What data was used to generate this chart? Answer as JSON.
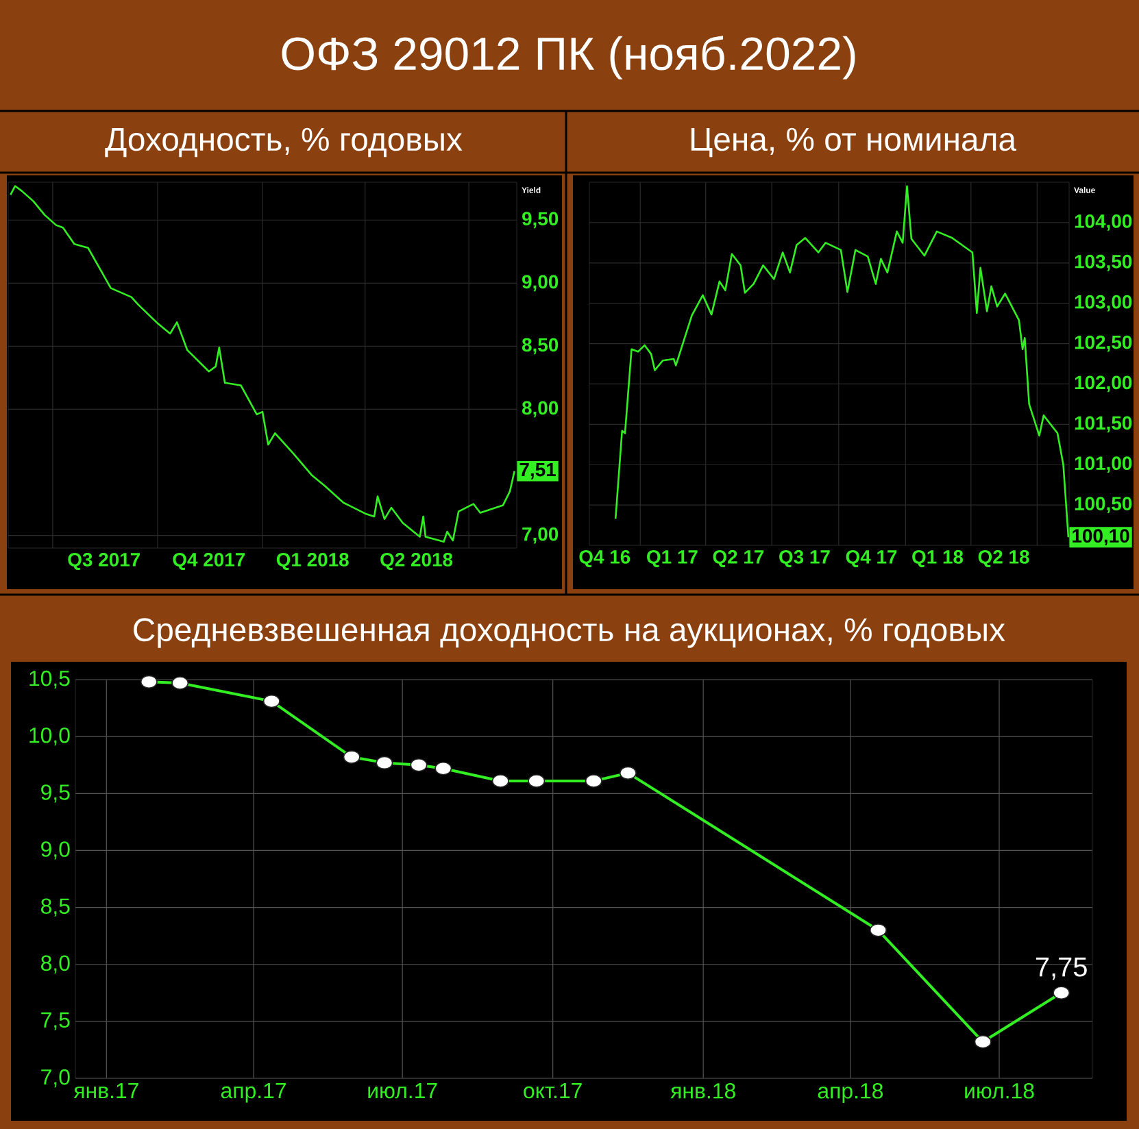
{
  "chart_data": [
    {
      "type": "line",
      "title": "ОФЗ 29012 ПК (нояб.2022)",
      "subtitle": "Доходность, % годовых",
      "ylabel": "Yield",
      "color": "#33ee22",
      "grid": true,
      "x": [
        "2017-05-25",
        "2017-05-29",
        "2017-06-04",
        "2017-06-14",
        "2017-06-24",
        "2017-07-04",
        "2017-07-10",
        "2017-07-20",
        "2017-08-01",
        "2017-08-11",
        "2017-08-21",
        "2017-09-08",
        "2017-09-14",
        "2017-09-30",
        "2017-10-12",
        "2017-10-18",
        "2017-10-27",
        "2017-11-15",
        "2017-11-21",
        "2017-11-24",
        "2017-11-29",
        "2017-12-13",
        "2017-12-27",
        "2018-01-01",
        "2018-01-06",
        "2018-01-12",
        "2018-01-28",
        "2018-02-13",
        "2018-02-25",
        "2018-03-13",
        "2018-04-02",
        "2018-04-09",
        "2018-04-12",
        "2018-04-18",
        "2018-04-24",
        "2018-05-04",
        "2018-05-19",
        "2018-05-22",
        "2018-05-24",
        "2018-06-09",
        "2018-06-12",
        "2018-06-17",
        "2018-06-22",
        "2018-07-05",
        "2018-07-11",
        "2018-07-31",
        "2018-08-06",
        "2018-08-10"
      ],
      "values": [
        9.7,
        9.77,
        9.73,
        9.65,
        9.54,
        9.46,
        9.44,
        9.31,
        9.28,
        9.12,
        8.96,
        8.89,
        8.83,
        8.69,
        8.6,
        8.69,
        8.47,
        8.3,
        8.34,
        8.49,
        8.21,
        8.19,
        7.96,
        7.98,
        7.72,
        7.81,
        7.65,
        7.48,
        7.39,
        7.26,
        7.17,
        7.15,
        7.31,
        7.13,
        7.22,
        7.1,
        6.99,
        7.15,
        6.99,
        6.95,
        7.03,
        6.96,
        7.19,
        7.25,
        7.18,
        7.24,
        7.35,
        7.51
      ],
      "xlim": [
        "2017-05-23",
        "2018-08-12"
      ],
      "ylim": [
        6.9,
        9.8
      ],
      "xticks": [
        {
          "value": "2017-07-01",
          "label": null
        },
        {
          "value": "2017-08-15",
          "label": "Q3 2017"
        },
        {
          "value": "2017-10-01",
          "label": null
        },
        {
          "value": "2017-11-15",
          "label": "Q4 2017"
        },
        {
          "value": "2018-01-01",
          "label": null
        },
        {
          "value": "2018-02-14",
          "label": "Q1 2018"
        },
        {
          "value": "2018-04-01",
          "label": null
        },
        {
          "value": "2018-05-16",
          "label": "Q2 2018"
        },
        {
          "value": "2018-07-01",
          "label": null
        }
      ],
      "yticks": [
        {
          "value": 7.0,
          "label": "7,00"
        },
        {
          "value": 8.0,
          "label": "8,00"
        },
        {
          "value": 8.5,
          "label": "8,50"
        },
        {
          "value": 9.0,
          "label": "9,00"
        },
        {
          "value": 9.5,
          "label": "9,50"
        }
      ],
      "annotations": [
        {
          "text": "7,51",
          "x": "2018-08-10",
          "y": 7.51
        }
      ]
    },
    {
      "type": "line",
      "title": "Цена, % от номинала",
      "ylabel": "Value",
      "color": "#33ee22",
      "grid": true,
      "x": [
        "2016-11-28",
        "2016-12-07",
        "2016-12-11",
        "2016-12-20",
        "2016-12-29",
        "2017-01-07",
        "2017-01-16",
        "2017-01-21",
        "2017-02-01",
        "2017-02-16",
        "2017-02-19",
        "2017-03-13",
        "2017-03-28",
        "2017-04-09",
        "2017-04-20",
        "2017-04-28",
        "2017-05-07",
        "2017-05-19",
        "2017-05-25",
        "2017-06-06",
        "2017-06-19",
        "2017-07-04",
        "2017-07-16",
        "2017-07-26",
        "2017-08-04",
        "2017-08-16",
        "2017-09-03",
        "2017-09-13",
        "2017-10-04",
        "2017-10-13",
        "2017-10-24",
        "2017-11-10",
        "2017-11-21",
        "2017-11-28",
        "2017-12-07",
        "2017-12-20",
        "2017-12-28",
        "2018-01-03",
        "2018-01-09",
        "2018-01-27",
        "2018-02-13",
        "2018-03-06",
        "2018-04-03",
        "2018-04-09",
        "2018-04-14",
        "2018-04-23",
        "2018-04-29",
        "2018-05-07",
        "2018-05-18",
        "2018-06-06",
        "2018-06-11",
        "2018-06-14",
        "2018-06-20",
        "2018-07-04",
        "2018-07-10",
        "2018-07-29",
        "2018-08-06",
        "2018-08-13"
      ],
      "values": [
        100.33,
        101.42,
        101.39,
        102.43,
        102.4,
        102.48,
        102.37,
        102.17,
        102.29,
        102.31,
        102.23,
        102.85,
        103.1,
        102.86,
        103.27,
        103.16,
        103.61,
        103.47,
        103.13,
        103.24,
        103.47,
        103.3,
        103.63,
        103.38,
        103.72,
        103.81,
        103.63,
        103.75,
        103.66,
        103.14,
        103.66,
        103.58,
        103.24,
        103.55,
        103.38,
        103.89,
        103.75,
        104.45,
        103.8,
        103.59,
        103.89,
        103.81,
        103.63,
        102.88,
        103.44,
        102.9,
        103.21,
        102.96,
        103.12,
        102.79,
        102.43,
        102.57,
        101.75,
        101.36,
        101.61,
        101.39,
        101.0,
        100.1
      ],
      "xlim": [
        "2016-10-23",
        "2018-08-14"
      ],
      "ylim": [
        100.0,
        104.5
      ],
      "xticks": [
        {
          "value": "2016-11-13",
          "label": "Q4 16"
        },
        {
          "value": "2017-01-01",
          "label": null
        },
        {
          "value": "2017-02-14",
          "label": "Q1 17"
        },
        {
          "value": "2017-04-01",
          "label": null
        },
        {
          "value": "2017-05-16",
          "label": "Q2 17"
        },
        {
          "value": "2017-07-01",
          "label": null
        },
        {
          "value": "2017-08-15",
          "label": "Q3 17"
        },
        {
          "value": "2017-10-01",
          "label": null
        },
        {
          "value": "2017-11-15",
          "label": "Q4 17"
        },
        {
          "value": "2018-01-01",
          "label": null
        },
        {
          "value": "2018-02-14",
          "label": "Q1 18"
        },
        {
          "value": "2018-04-01",
          "label": null
        },
        {
          "value": "2018-05-16",
          "label": "Q2 18"
        },
        {
          "value": "2018-07-01",
          "label": null
        }
      ],
      "yticks": [
        {
          "value": 100.5,
          "label": "100,50"
        },
        {
          "value": 101.0,
          "label": "101,00"
        },
        {
          "value": 101.5,
          "label": "101,50"
        },
        {
          "value": 102.0,
          "label": "102,00"
        },
        {
          "value": 102.5,
          "label": "102,50"
        },
        {
          "value": 103.0,
          "label": "103,00"
        },
        {
          "value": 103.5,
          "label": "103,50"
        },
        {
          "value": 104.0,
          "label": "104,00"
        }
      ],
      "annotations": [
        {
          "text": "100,10",
          "x": "2018-08-13",
          "y": 100.1
        }
      ]
    },
    {
      "type": "line",
      "title": "Средневзвешенная доходность на аукционах, % годовых",
      "color": "#33ee22",
      "grid": true,
      "marker": "circle",
      "x": [
        "2017-01-27",
        "2017-02-15",
        "2017-04-12",
        "2017-05-31",
        "2017-06-20",
        "2017-07-11",
        "2017-07-26",
        "2017-08-30",
        "2017-09-21",
        "2017-10-26",
        "2017-11-16",
        "2018-04-18",
        "2018-06-21",
        "2018-08-08"
      ],
      "values": [
        10.48,
        10.47,
        10.31,
        9.82,
        9.77,
        9.75,
        9.72,
        9.61,
        9.61,
        9.61,
        9.68,
        8.3,
        7.32,
        7.75
      ],
      "value_labels": [
        null,
        null,
        null,
        null,
        null,
        null,
        null,
        null,
        null,
        null,
        null,
        null,
        null,
        "7,75"
      ],
      "xlim": [
        "2016-12-13",
        "2018-08-27"
      ],
      "ylim": [
        7.0,
        10.5
      ],
      "xticks": [
        {
          "value": "2017-01-01",
          "label": "янв.17"
        },
        {
          "value": "2017-04-01",
          "label": "апр.17"
        },
        {
          "value": "2017-07-01",
          "label": "июл.17"
        },
        {
          "value": "2017-10-01",
          "label": "окт.17"
        },
        {
          "value": "2018-01-01",
          "label": "янв.18"
        },
        {
          "value": "2018-04-01",
          "label": "апр.18"
        },
        {
          "value": "2018-07-01",
          "label": "июл.18"
        }
      ],
      "yticks": [
        {
          "value": 7.0,
          "label": "7,0"
        },
        {
          "value": 7.5,
          "label": "7,5"
        },
        {
          "value": 8.0,
          "label": "8,0"
        },
        {
          "value": 8.5,
          "label": "8,5"
        },
        {
          "value": 9.0,
          "label": "9,0"
        },
        {
          "value": 9.5,
          "label": "9,5"
        },
        {
          "value": 10.0,
          "label": "10,0"
        },
        {
          "value": 10.5,
          "label": "10,5"
        }
      ]
    }
  ]
}
